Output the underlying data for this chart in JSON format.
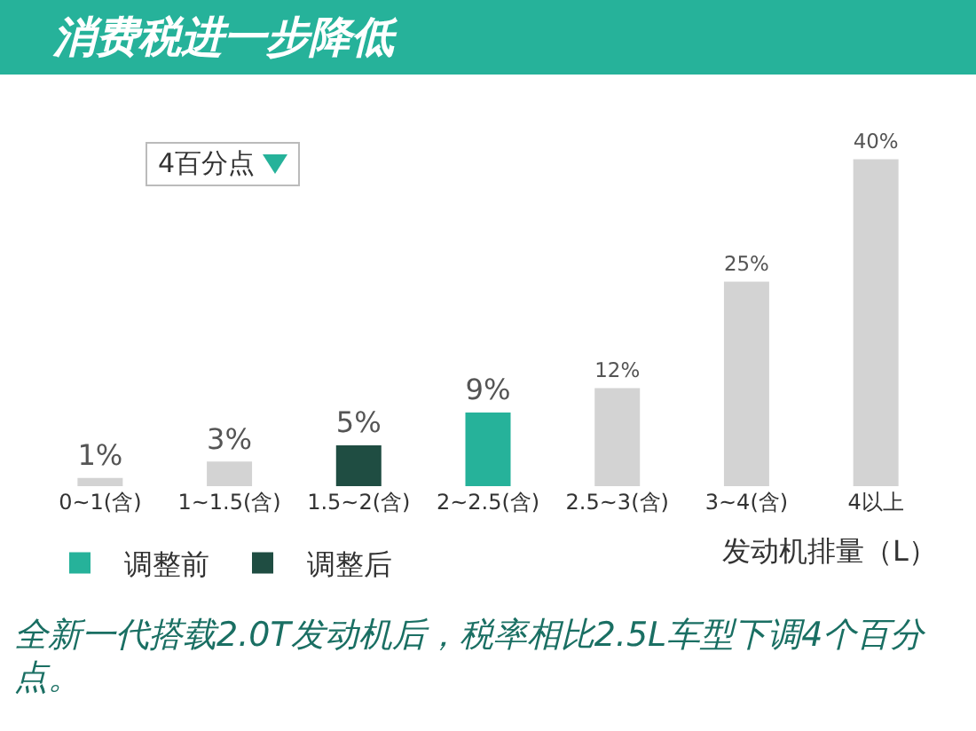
{
  "chart_data": {
    "type": "bar",
    "title": "消费税进一步降低",
    "xlabel": "发动机排量（L）",
    "categories": [
      "0~1(含)",
      "1~1.5(含)",
      "1.5~2(含)",
      "2~2.5(含)",
      "2.5~3(含)",
      "3~4(含)",
      "4以上"
    ],
    "series": [
      {
        "name": "调整前",
        "color": "#26b29a",
        "values": [
          null,
          null,
          null,
          9,
          null,
          null,
          null
        ],
        "value_labels": [
          null,
          null,
          null,
          "9%",
          null,
          null,
          null
        ]
      },
      {
        "name": "调整后",
        "color": "#1f4d42",
        "values": [
          null,
          null,
          5,
          null,
          null,
          null,
          null
        ],
        "value_labels": [
          null,
          null,
          "5%",
          null,
          null,
          null,
          null
        ]
      },
      {
        "color": "#d3d3d3",
        "values": [
          1,
          3,
          null,
          null,
          12,
          25,
          40
        ],
        "value_labels": [
          "1%",
          "3%",
          null,
          null,
          "12%",
          "25%",
          "40%"
        ]
      }
    ],
    "legend": "bottom left",
    "annotations": [
      "4百分点",
      "全新一代搭载2.0T发动机后，税率相比2.5L车型下调4个百分点。"
    ]
  }
}
